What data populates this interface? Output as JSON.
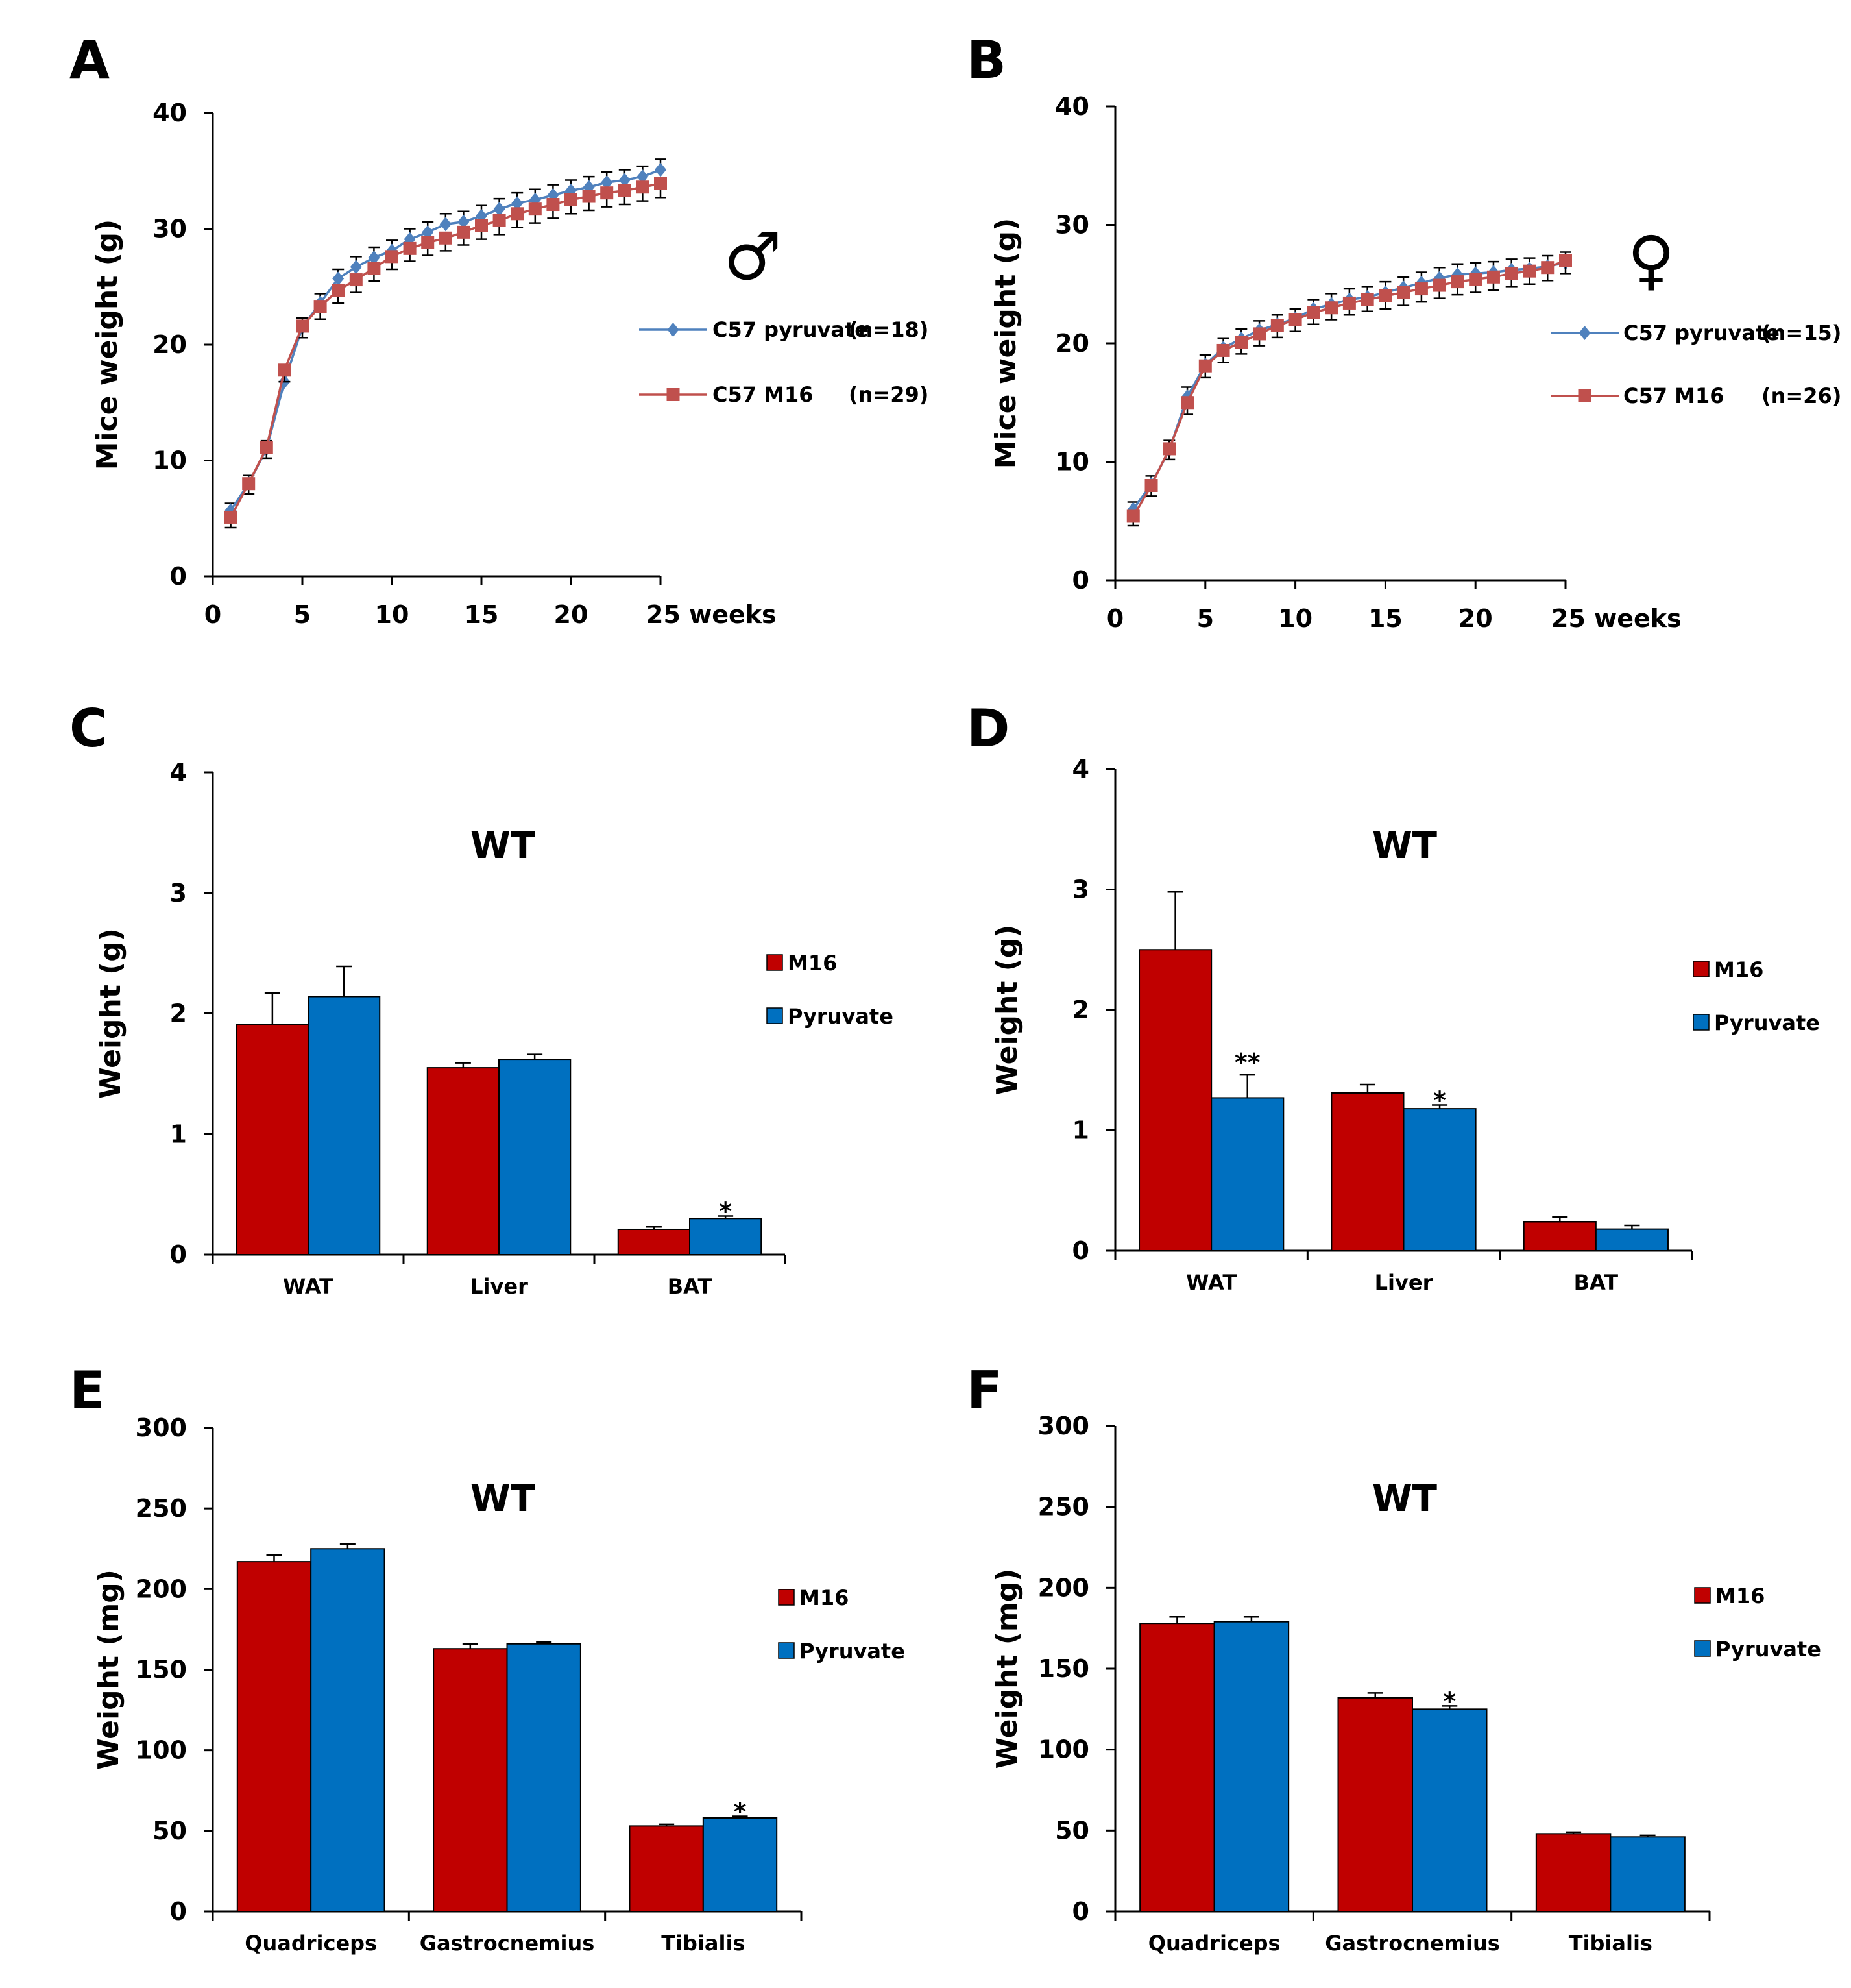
{
  "figure": {
    "colors": {
      "m16": "#C00000",
      "pyruvate": "#0070C0",
      "line_pyruvate": "#4F81BD",
      "line_m16": "#C0504D"
    }
  },
  "chart_data": [
    {
      "panel": "A",
      "type": "line",
      "ylabel": "Mice weight (g)",
      "xlabel": "weeks",
      "ylim": [
        0,
        40
      ],
      "xlim": [
        0,
        25
      ],
      "yticks": [
        0,
        10,
        20,
        30,
        40
      ],
      "xticks": [
        0,
        5,
        10,
        15,
        20,
        25
      ],
      "xtick_labels": [
        "0",
        "5",
        "10",
        "15",
        "20",
        "25 weeks"
      ],
      "symbol": "♂",
      "legend": [
        {
          "series": "C57 pyruvate",
          "n": "(n=18)"
        },
        {
          "series": "C57 M16",
          "n": "(n=29)"
        }
      ],
      "x": [
        1,
        2,
        3,
        4,
        5,
        6,
        7,
        8,
        9,
        10,
        11,
        12,
        13,
        14,
        15,
        16,
        17,
        18,
        19,
        20,
        21,
        22,
        23,
        24,
        25
      ],
      "series": [
        {
          "name": "C57 pyruvate (n=18)",
          "marker": "diamond",
          "values": [
            5.7,
            8.0,
            11.0,
            16.8,
            21.5,
            23.6,
            25.7,
            26.7,
            27.5,
            28.1,
            29.1,
            29.7,
            30.4,
            30.6,
            31.1,
            31.7,
            32.2,
            32.5,
            32.9,
            33.3,
            33.6,
            34.0,
            34.2,
            34.5,
            35.1
          ],
          "errors": [
            0.6,
            0.7,
            0.7,
            0.8,
            0.8,
            0.8,
            0.8,
            0.9,
            0.9,
            0.9,
            0.9,
            0.9,
            0.9,
            0.9,
            0.9,
            0.9,
            0.9,
            0.9,
            0.9,
            0.9,
            0.9,
            0.9,
            0.9,
            0.9,
            0.9
          ]
        },
        {
          "name": "C57 M16 (n=29)",
          "marker": "square",
          "values": [
            5.1,
            8.0,
            11.1,
            17.8,
            21.6,
            23.3,
            24.7,
            25.6,
            26.6,
            27.6,
            28.3,
            28.8,
            29.2,
            29.7,
            30.3,
            30.7,
            31.3,
            31.7,
            32.1,
            32.5,
            32.8,
            33.1,
            33.3,
            33.6,
            33.9
          ],
          "errors": [
            0.9,
            0.9,
            0.9,
            1.0,
            1.0,
            1.1,
            1.1,
            1.1,
            1.1,
            1.1,
            1.1,
            1.1,
            1.1,
            1.1,
            1.2,
            1.2,
            1.2,
            1.2,
            1.2,
            1.2,
            1.2,
            1.2,
            1.2,
            1.2,
            1.2
          ]
        }
      ]
    },
    {
      "panel": "B",
      "type": "line",
      "ylabel": "Mice weight (g)",
      "xlabel": "weeks",
      "ylim": [
        0,
        40
      ],
      "xlim": [
        0,
        25
      ],
      "yticks": [
        0,
        10,
        20,
        30,
        40
      ],
      "xticks": [
        0,
        5,
        10,
        15,
        20,
        25
      ],
      "xtick_labels": [
        "0",
        "5",
        "10",
        "15",
        "20",
        "25 weeks"
      ],
      "symbol": "♀",
      "legend": [
        {
          "series": "C57 pyruvate",
          "n": "(n=15)"
        },
        {
          "series": "C57 M16",
          "n": "(n=26)"
        }
      ],
      "x": [
        1,
        2,
        3,
        4,
        5,
        6,
        7,
        8,
        9,
        10,
        11,
        12,
        13,
        14,
        15,
        16,
        17,
        18,
        19,
        20,
        21,
        22,
        23,
        24,
        25
      ],
      "series": [
        {
          "name": "C57 pyruvate (n=15)",
          "marker": "diamond",
          "values": [
            6.0,
            8.1,
            11.0,
            15.5,
            18.2,
            19.6,
            20.4,
            21.1,
            21.6,
            22.1,
            22.9,
            23.3,
            23.7,
            23.9,
            24.3,
            24.7,
            25.1,
            25.5,
            25.8,
            25.9,
            26.0,
            26.2,
            26.3,
            26.5,
            26.8
          ],
          "errors": [
            0.6,
            0.7,
            0.8,
            0.8,
            0.8,
            0.8,
            0.8,
            0.8,
            0.8,
            0.8,
            0.8,
            0.9,
            0.9,
            0.9,
            0.9,
            0.9,
            0.9,
            0.9,
            0.9,
            0.9,
            0.9,
            0.9,
            0.9,
            0.9,
            0.9
          ]
        },
        {
          "name": "C57 M16 (n=26)",
          "marker": "square",
          "values": [
            5.4,
            8.0,
            11.1,
            15.0,
            18.1,
            19.4,
            20.1,
            20.8,
            21.5,
            22.0,
            22.6,
            23.0,
            23.4,
            23.7,
            24.0,
            24.3,
            24.6,
            24.9,
            25.2,
            25.4,
            25.6,
            25.9,
            26.1,
            26.4,
            27.0
          ],
          "errors": [
            0.8,
            0.9,
            0.9,
            1.0,
            1.0,
            1.0,
            1.0,
            1.0,
            1.0,
            1.0,
            1.0,
            1.0,
            1.0,
            1.0,
            1.1,
            1.1,
            1.1,
            1.1,
            1.1,
            1.1,
            1.1,
            1.1,
            1.1,
            1.1,
            1.1
          ]
        }
      ]
    },
    {
      "panel": "C",
      "type": "bar",
      "title": "WT",
      "ylabel": "Weight (g)",
      "ylim": [
        0,
        4
      ],
      "yticks": [
        0,
        1,
        2,
        3,
        4
      ],
      "categories": [
        "WAT",
        "Liver",
        "BAT"
      ],
      "series": [
        {
          "name": "M16",
          "values": [
            1.91,
            1.55,
            0.21
          ],
          "errors": [
            0.26,
            0.04,
            0.02
          ]
        },
        {
          "name": "Pyruvate",
          "values": [
            2.14,
            1.62,
            0.3
          ],
          "errors": [
            0.25,
            0.04,
            0.02
          ]
        }
      ],
      "annotations": [
        {
          "category": "BAT",
          "series": "Pyruvate",
          "text": "*"
        }
      ]
    },
    {
      "panel": "D",
      "type": "bar",
      "title": "WT",
      "ylabel": "Weight (g)",
      "ylim": [
        0,
        4
      ],
      "yticks": [
        0,
        1,
        2,
        3,
        4
      ],
      "categories": [
        "WAT",
        "Liver",
        "BAT"
      ],
      "series": [
        {
          "name": "M16",
          "values": [
            2.5,
            1.31,
            0.24
          ],
          "errors": [
            0.48,
            0.07,
            0.04
          ]
        },
        {
          "name": "Pyruvate",
          "values": [
            1.27,
            1.18,
            0.18
          ],
          "errors": [
            0.19,
            0.03,
            0.03
          ]
        }
      ],
      "annotations": [
        {
          "category": "WAT",
          "series": "Pyruvate",
          "text": "**"
        },
        {
          "category": "Liver",
          "series": "Pyruvate",
          "text": "*"
        }
      ]
    },
    {
      "panel": "E",
      "type": "bar",
      "title": "WT",
      "ylabel": "Weight (mg)",
      "ylim": [
        0,
        300
      ],
      "yticks": [
        0,
        50,
        100,
        150,
        200,
        250,
        300
      ],
      "categories": [
        "Quadriceps",
        "Gastrocnemius",
        "Tibialis"
      ],
      "series": [
        {
          "name": "M16",
          "values": [
            217,
            163,
            53
          ],
          "errors": [
            4,
            3,
            1
          ]
        },
        {
          "name": "Pyruvate",
          "values": [
            225,
            166,
            58
          ],
          "errors": [
            3,
            1,
            1
          ]
        }
      ],
      "annotations": [
        {
          "category": "Tibialis",
          "series": "Pyruvate",
          "text": "*"
        }
      ]
    },
    {
      "panel": "F",
      "type": "bar",
      "title": "WT",
      "ylabel": "Weight (mg)",
      "ylim": [
        0,
        300
      ],
      "yticks": [
        0,
        50,
        100,
        150,
        200,
        250,
        300
      ],
      "categories": [
        "Quadriceps",
        "Gastrocnemius",
        "Tibialis"
      ],
      "series": [
        {
          "name": "M16",
          "values": [
            178,
            132,
            48
          ],
          "errors": [
            4,
            3,
            1
          ]
        },
        {
          "name": "Pyruvate",
          "values": [
            179,
            125,
            46
          ],
          "errors": [
            3,
            2,
            1
          ]
        }
      ],
      "annotations": [
        {
          "category": "Gastrocnemius",
          "series": "Pyruvate",
          "text": "*"
        }
      ]
    }
  ]
}
